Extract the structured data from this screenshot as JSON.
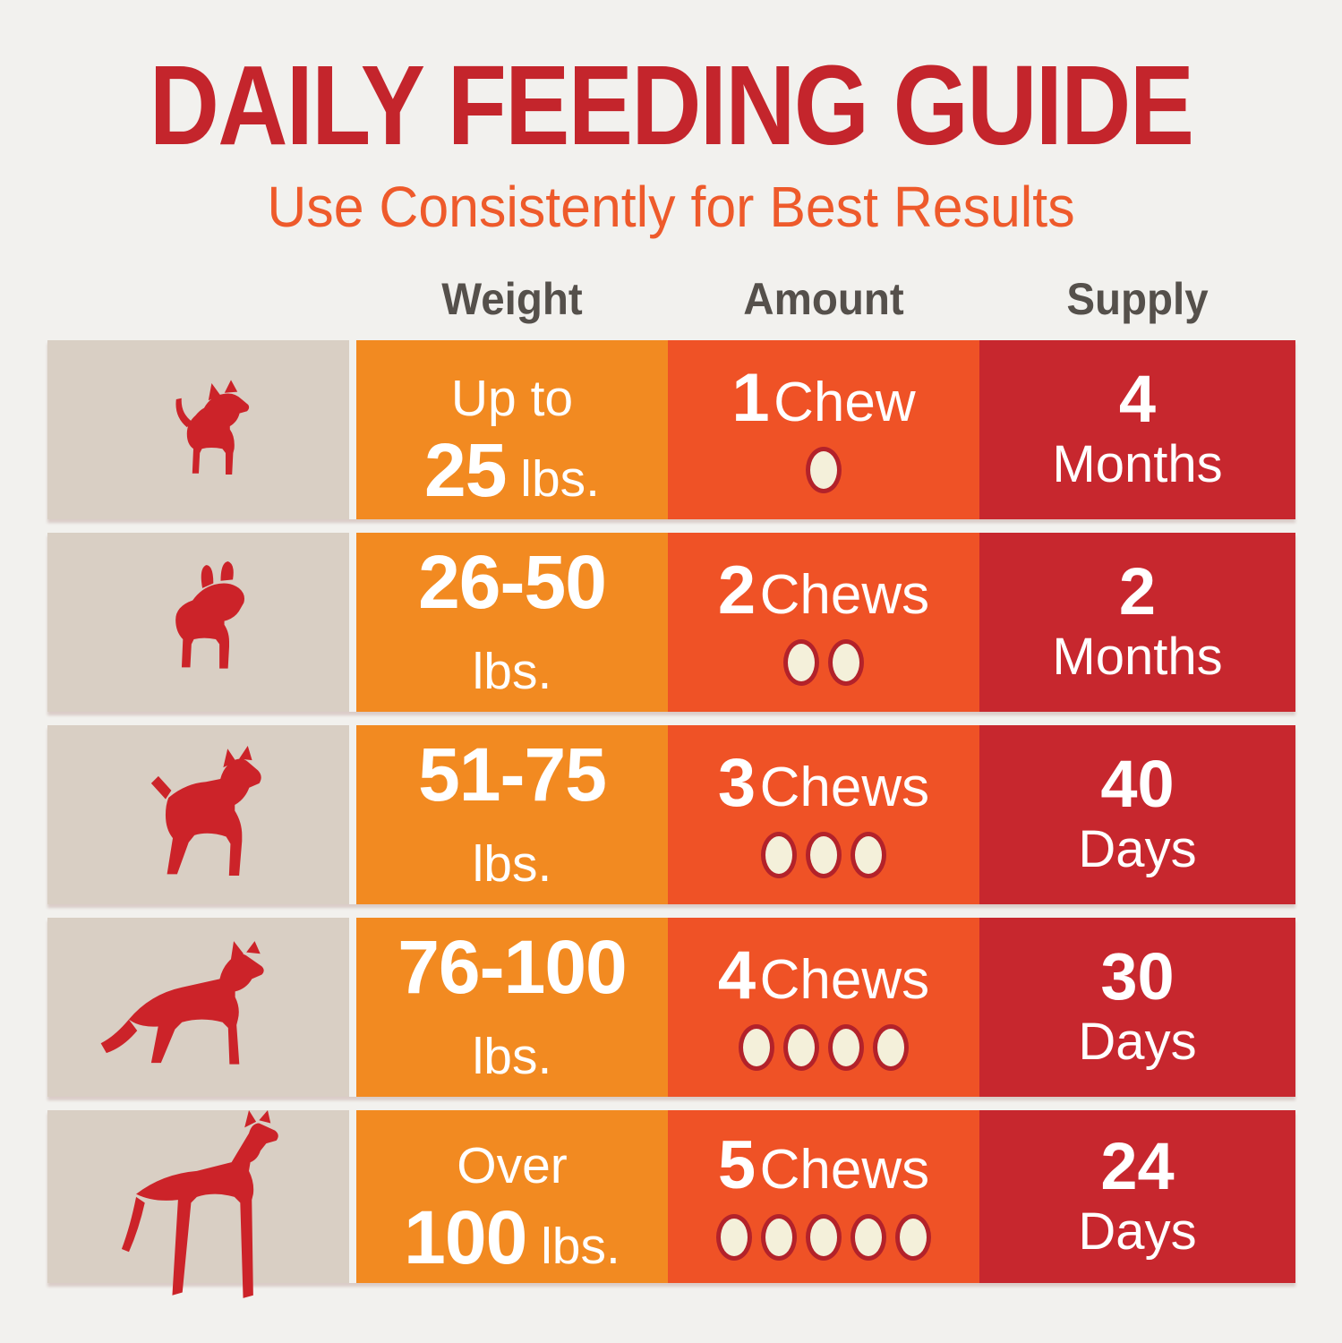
{
  "header": {
    "title": "DAILY FEEDING GUIDE",
    "subtitle": "Use Consistently for Best Results"
  },
  "columns": {
    "weight": "Weight",
    "amount": "Amount",
    "supply": "Supply"
  },
  "colors": {
    "background": "#F2F1EE",
    "dog_cell_tan": "#D9CFC4",
    "weight_column_orange": "#F28A21",
    "amount_column_orange_red": "#EF5226",
    "supply_column_red": "#C7272E",
    "dog_silhouette_red": "#CC2329",
    "title_red": "#C4252C",
    "subtitle_orange": "#EE5A2B",
    "column_header_gray": "#55504B",
    "chew_dot_fill": "#F4F0DA",
    "chew_dot_ring": "#B3222A",
    "cell_text_white": "#FFFFFF"
  },
  "rows": [
    {
      "dog_icon": "chihuahua-dog-icon",
      "weight": {
        "line1_bold": "",
        "line1_regular": "Up to",
        "line2_bold": "25",
        "line2_regular": " lbs."
      },
      "amount": {
        "count": "1",
        "label": "Chew",
        "dots": 1
      },
      "supply": {
        "value": "4",
        "unit": "Months"
      }
    },
    {
      "dog_icon": "french-bulldog-dog-icon",
      "weight": {
        "line1_bold": "26-50",
        "line1_regular": "",
        "line2_bold": "",
        "line2_regular": "lbs."
      },
      "amount": {
        "count": "2",
        "label": "Chews",
        "dots": 2
      },
      "supply": {
        "value": "2",
        "unit": "Months"
      }
    },
    {
      "dog_icon": "boxer-dog-icon",
      "weight": {
        "line1_bold": "51-75",
        "line1_regular": "",
        "line2_bold": "",
        "line2_regular": "lbs."
      },
      "amount": {
        "count": "3",
        "label": "Chews",
        "dots": 3
      },
      "supply": {
        "value": "40",
        "unit": "Days"
      }
    },
    {
      "dog_icon": "german-shepherd-dog-icon",
      "weight": {
        "line1_bold": "76-100",
        "line1_regular": "",
        "line2_bold": "",
        "line2_regular": "lbs."
      },
      "amount": {
        "count": "4",
        "label": "Chews",
        "dots": 4
      },
      "supply": {
        "value": "30",
        "unit": "Days"
      }
    },
    {
      "dog_icon": "great-dane-dog-icon",
      "weight": {
        "line1_bold": "",
        "line1_regular": "Over",
        "line2_bold": "100",
        "line2_regular": " lbs."
      },
      "amount": {
        "count": "5",
        "label": "Chews",
        "dots": 5
      },
      "supply": {
        "value": "24",
        "unit": "Days"
      }
    }
  ],
  "chart_data": {
    "type": "table",
    "title": "DAILY FEEDING GUIDE",
    "subtitle": "Use Consistently for Best Results",
    "columns": [
      "Weight",
      "Amount",
      "Supply"
    ],
    "rows": [
      {
        "dog_size": "chihuahua (smallest)",
        "weight": "Up to 25 lbs.",
        "amount": "1 Chew",
        "chew_dots": 1,
        "supply": "4 Months"
      },
      {
        "dog_size": "french bulldog (small)",
        "weight": "26-50 lbs.",
        "amount": "2 Chews",
        "chew_dots": 2,
        "supply": "2 Months"
      },
      {
        "dog_size": "boxer (medium)",
        "weight": "51-75 lbs.",
        "amount": "3 Chews",
        "chew_dots": 3,
        "supply": "40 Days"
      },
      {
        "dog_size": "german shepherd (large)",
        "weight": "76-100 lbs.",
        "amount": "4 Chews",
        "chew_dots": 4,
        "supply": "30 Days"
      },
      {
        "dog_size": "great dane (largest)",
        "weight": "Over 100 lbs.",
        "amount": "5 Chews",
        "chew_dots": 5,
        "supply": "24 Days"
      }
    ],
    "legend_position": "none",
    "grid": false
  }
}
